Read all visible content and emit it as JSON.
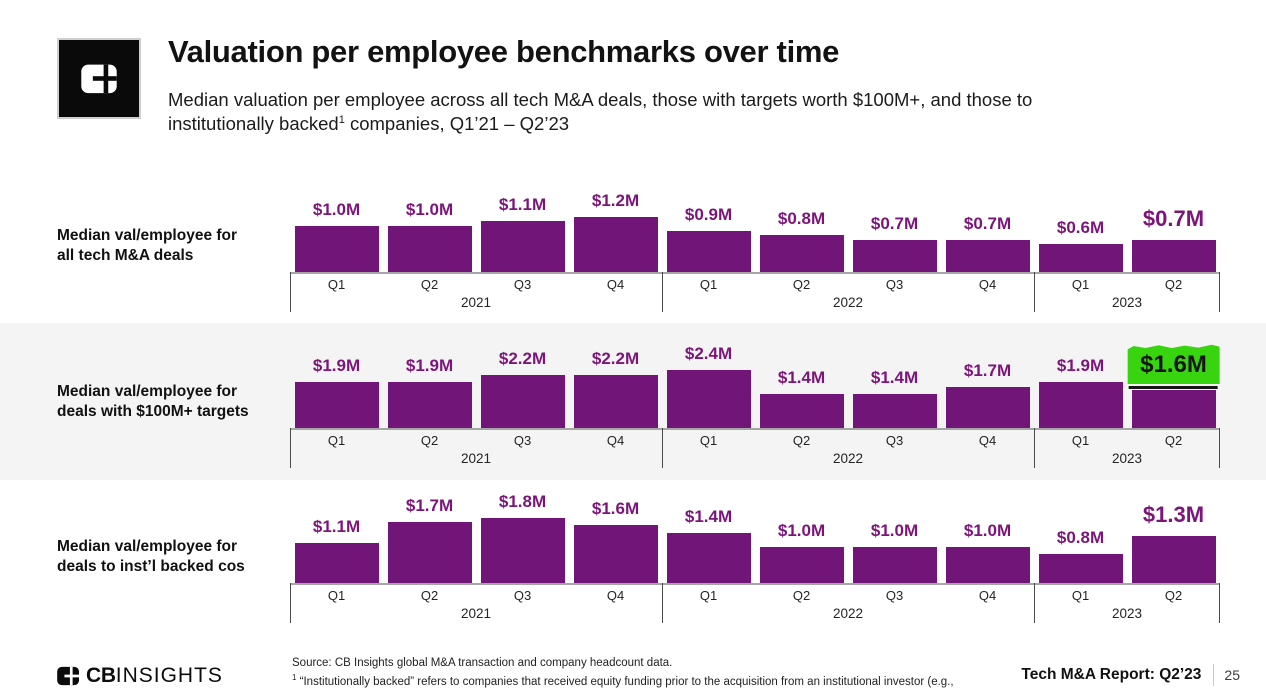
{
  "header": {
    "title": "Valuation per employee benchmarks over time",
    "subtitle_line1": "Median valuation per employee across all tech M&A deals, those with targets worth $100M+, and those to",
    "subtitle_line2_pre": "institutionally backed",
    "subtitle_sup": "1",
    "subtitle_line2_post": " companies, Q1’21 – Q2’23",
    "logo_icon": "cbinsights-block-icon"
  },
  "colors": {
    "bar_purple": "#721578",
    "value_label_purple": "#7b1579",
    "highlight_green": "#38d40f",
    "band_gray": "#f4f4f4",
    "axis_baseline_gray": "#a6a6a6",
    "axis_separator_dark": "#4a4a4a"
  },
  "chart_data": [
    {
      "type": "bar",
      "row_label": "Median val/employee for\nall tech M&A deals",
      "quarter_labels": [
        "Q1",
        "Q2",
        "Q3",
        "Q4",
        "Q1",
        "Q2",
        "Q3",
        "Q4",
        "Q1",
        "Q2"
      ],
      "year_groups": [
        {
          "label": "2021",
          "span": 4
        },
        {
          "label": "2022",
          "span": 4
        },
        {
          "label": "2023",
          "span": 2
        }
      ],
      "values": [
        1.0,
        1.0,
        1.1,
        1.2,
        0.9,
        0.8,
        0.7,
        0.7,
        0.6,
        0.7
      ],
      "value_labels": [
        "$1.0M",
        "$1.0M",
        "$1.1M",
        "$1.2M",
        "$0.9M",
        "$0.8M",
        "$0.7M",
        "$0.7M",
        "$0.6M",
        "$0.7M"
      ],
      "unit": "USD millions",
      "highlight": null
    },
    {
      "type": "bar",
      "row_label": "Median val/employee for\ndeals with $100M+ targets",
      "quarter_labels": [
        "Q1",
        "Q2",
        "Q3",
        "Q4",
        "Q1",
        "Q2",
        "Q3",
        "Q4",
        "Q1",
        "Q2"
      ],
      "year_groups": [
        {
          "label": "2021",
          "span": 4
        },
        {
          "label": "2022",
          "span": 4
        },
        {
          "label": "2023",
          "span": 2
        }
      ],
      "values": [
        1.9,
        1.9,
        2.2,
        2.2,
        2.4,
        1.4,
        1.4,
        1.7,
        1.9,
        1.6
      ],
      "value_labels": [
        "$1.9M",
        "$1.9M",
        "$2.2M",
        "$2.2M",
        "$2.4M",
        "$1.4M",
        "$1.4M",
        "$1.7M",
        "$1.9M",
        "$1.6M"
      ],
      "unit": "USD millions",
      "highlight": {
        "index": 9,
        "style": "green-highlighter"
      }
    },
    {
      "type": "bar",
      "row_label": "Median val/employee for\ndeals to inst’l backed cos",
      "quarter_labels": [
        "Q1",
        "Q2",
        "Q3",
        "Q4",
        "Q1",
        "Q2",
        "Q3",
        "Q4",
        "Q1",
        "Q2"
      ],
      "year_groups": [
        {
          "label": "2021",
          "span": 4
        },
        {
          "label": "2022",
          "span": 4
        },
        {
          "label": "2023",
          "span": 2
        }
      ],
      "values": [
        1.1,
        1.7,
        1.8,
        1.6,
        1.4,
        1.0,
        1.0,
        1.0,
        0.8,
        1.3
      ],
      "value_labels": [
        "$1.1M",
        "$1.7M",
        "$1.8M",
        "$1.6M",
        "$1.4M",
        "$1.0M",
        "$1.0M",
        "$1.0M",
        "$0.8M",
        "$1.3M"
      ],
      "unit": "USD millions",
      "highlight": null
    }
  ],
  "footer": {
    "logo_bold": "CB",
    "logo_light": "INSIGHTS",
    "source_line": "Source: CB Insights global M&A transaction and company headcount data.",
    "footnote_sup": "1",
    "footnote_line": " “Institutionally backed” refers to companies that received equity funding prior to the acquisition from an institutional investor (e.g.,",
    "report_label": "Tech M&A Report: Q2’23",
    "page_number": "25"
  }
}
